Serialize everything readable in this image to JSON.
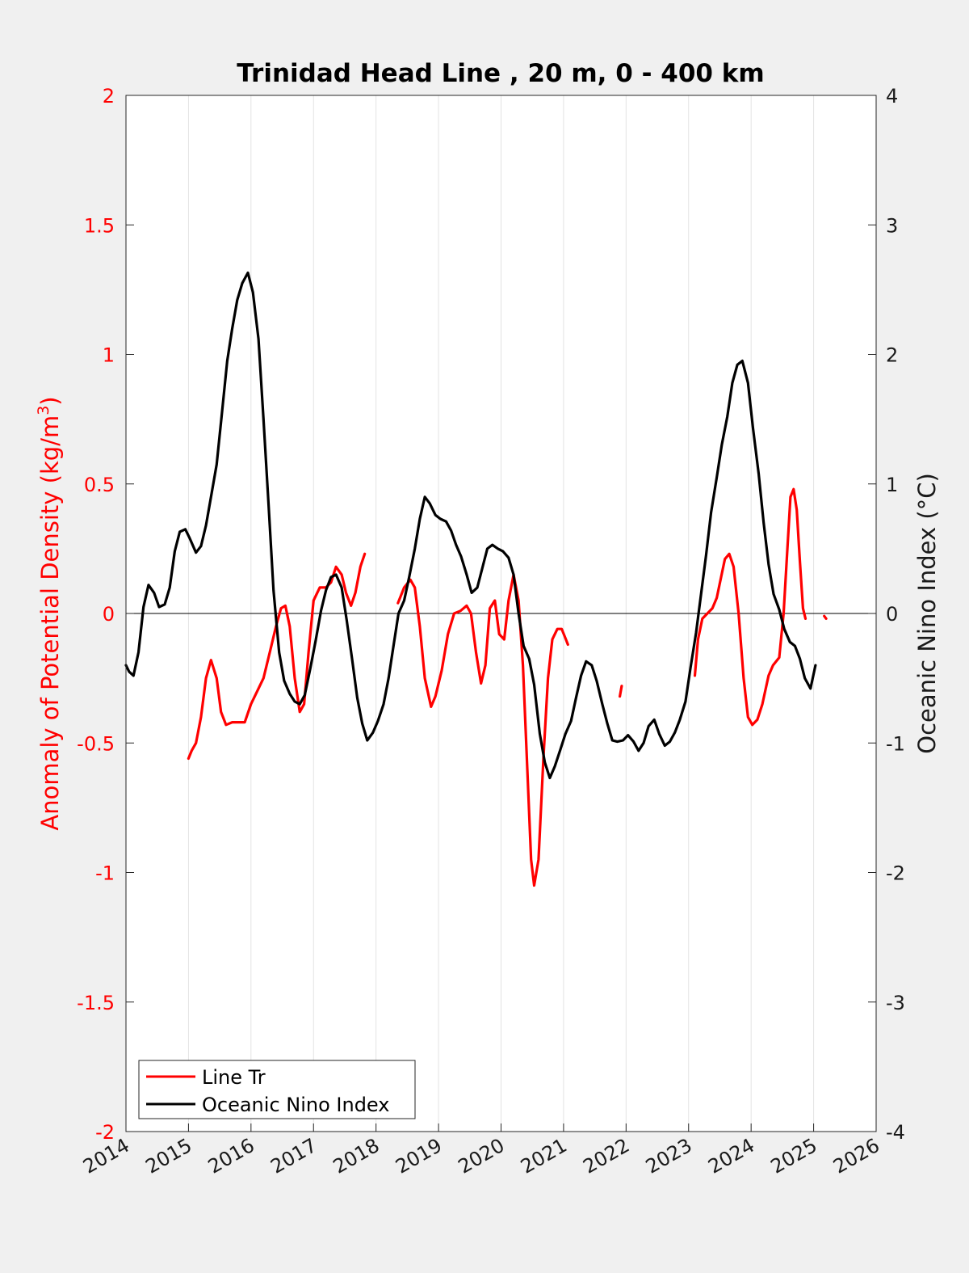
{
  "chart_data": {
    "type": "line",
    "title": "Trinidad Head Line , 20 m, 0 - 400 km",
    "xlabel": "",
    "ylabel_left": "Anomaly of Potential Density (kg/m³)",
    "ylabel_left_unit_prefix": "Anomaly of Potential Density (kg/m",
    "ylabel_left_unit_sup": "3",
    "ylabel_left_unit_suffix": ")",
    "ylabel_right": "Oceanic Nino Index (°C)",
    "xlim": [
      2014,
      2026
    ],
    "ylim_left": [
      -2,
      2
    ],
    "ylim_right": [
      -4,
      4
    ],
    "x_ticks": [
      "2014",
      "2015",
      "2016",
      "2017",
      "2018",
      "2019",
      "2020",
      "2021",
      "2022",
      "2023",
      "2024",
      "2025",
      "2026"
    ],
    "y_left_ticks": [
      "2",
      "1.5",
      "1",
      "0.5",
      "0",
      "-0.5",
      "-1",
      "-1.5",
      "-2"
    ],
    "y_right_ticks": [
      "4",
      "3",
      "2",
      "1",
      "0",
      "-1",
      "-2",
      "-3",
      "-4"
    ],
    "grid": "vertical",
    "legend_position": "bottom-left",
    "colors": {
      "line_tr": "#ff0000",
      "oni": "#000000",
      "zero_line": "#000000"
    },
    "series": [
      {
        "name": "Line Tr",
        "axis": "left",
        "segments": [
          [
            [
              2015.0,
              -0.56
            ],
            [
              2015.05,
              -0.53
            ],
            [
              2015.12,
              -0.5
            ],
            [
              2015.2,
              -0.4
            ],
            [
              2015.28,
              -0.25
            ],
            [
              2015.36,
              -0.18
            ],
            [
              2015.45,
              -0.25
            ],
            [
              2015.52,
              -0.38
            ],
            [
              2015.6,
              -0.43
            ],
            [
              2015.7,
              -0.42
            ],
            [
              2015.8,
              -0.42
            ],
            [
              2015.9,
              -0.42
            ],
            [
              2016.0,
              -0.35
            ],
            [
              2016.1,
              -0.3
            ],
            [
              2016.2,
              -0.25
            ],
            [
              2016.3,
              -0.15
            ],
            [
              2016.4,
              -0.05
            ],
            [
              2016.48,
              0.02
            ],
            [
              2016.55,
              0.03
            ],
            [
              2016.62,
              -0.05
            ],
            [
              2016.7,
              -0.25
            ],
            [
              2016.78,
              -0.38
            ],
            [
              2016.85,
              -0.35
            ],
            [
              2016.92,
              -0.15
            ],
            [
              2017.0,
              0.05
            ],
            [
              2017.1,
              0.1
            ],
            [
              2017.2,
              0.1
            ],
            [
              2017.28,
              0.12
            ],
            [
              2017.36,
              0.18
            ],
            [
              2017.45,
              0.15
            ],
            [
              2017.52,
              0.08
            ],
            [
              2017.6,
              0.03
            ],
            [
              2017.67,
              0.08
            ],
            [
              2017.75,
              0.18
            ],
            [
              2017.82,
              0.23
            ]
          ],
          [
            [
              2018.35,
              0.04
            ],
            [
              2018.45,
              0.1
            ],
            [
              2018.55,
              0.13
            ],
            [
              2018.62,
              0.1
            ],
            [
              2018.7,
              -0.05
            ],
            [
              2018.78,
              -0.25
            ],
            [
              2018.88,
              -0.36
            ],
            [
              2018.95,
              -0.32
            ],
            [
              2019.05,
              -0.22
            ],
            [
              2019.15,
              -0.08
            ],
            [
              2019.25,
              0.0
            ],
            [
              2019.35,
              0.01
            ],
            [
              2019.45,
              0.03
            ],
            [
              2019.52,
              0.0
            ],
            [
              2019.6,
              -0.15
            ],
            [
              2019.68,
              -0.27
            ],
            [
              2019.75,
              -0.2
            ],
            [
              2019.82,
              0.02
            ],
            [
              2019.9,
              0.05
            ],
            [
              2019.97,
              -0.08
            ],
            [
              2020.05,
              -0.1
            ],
            [
              2020.12,
              0.05
            ],
            [
              2020.2,
              0.15
            ],
            [
              2020.28,
              0.05
            ],
            [
              2020.35,
              -0.2
            ],
            [
              2020.42,
              -0.6
            ],
            [
              2020.48,
              -0.95
            ],
            [
              2020.53,
              -1.05
            ],
            [
              2020.6,
              -0.95
            ],
            [
              2020.68,
              -0.55
            ],
            [
              2020.75,
              -0.25
            ],
            [
              2020.82,
              -0.1
            ],
            [
              2020.9,
              -0.06
            ],
            [
              2020.97,
              -0.06
            ],
            [
              2021.02,
              -0.09
            ],
            [
              2021.07,
              -0.12
            ]
          ],
          [
            [
              2021.9,
              -0.32
            ],
            [
              2021.93,
              -0.28
            ]
          ],
          [
            [
              2023.1,
              -0.24
            ],
            [
              2023.15,
              -0.1
            ],
            [
              2023.22,
              -0.02
            ],
            [
              2023.3,
              0.0
            ],
            [
              2023.38,
              0.02
            ],
            [
              2023.45,
              0.06
            ],
            [
              2023.52,
              0.14
            ],
            [
              2023.58,
              0.21
            ],
            [
              2023.65,
              0.23
            ],
            [
              2023.72,
              0.18
            ],
            [
              2023.8,
              0.0
            ],
            [
              2023.88,
              -0.25
            ],
            [
              2023.95,
              -0.4
            ],
            [
              2024.02,
              -0.43
            ],
            [
              2024.1,
              -0.41
            ],
            [
              2024.18,
              -0.35
            ],
            [
              2024.28,
              -0.24
            ],
            [
              2024.35,
              -0.2
            ],
            [
              2024.45,
              -0.17
            ],
            [
              2024.52,
              0.0
            ],
            [
              2024.58,
              0.25
            ],
            [
              2024.63,
              0.45
            ],
            [
              2024.68,
              0.48
            ],
            [
              2024.73,
              0.4
            ],
            [
              2024.78,
              0.2
            ],
            [
              2024.83,
              0.02
            ],
            [
              2024.87,
              -0.02
            ]
          ],
          [
            [
              2025.17,
              -0.01
            ],
            [
              2025.2,
              -0.02
            ]
          ]
        ]
      },
      {
        "name": "Oceanic Nino Index",
        "axis": "right",
        "points": [
          [
            2014.0,
            -0.4
          ],
          [
            2014.05,
            -0.45
          ],
          [
            2014.12,
            -0.48
          ],
          [
            2014.2,
            -0.3
          ],
          [
            2014.28,
            0.05
          ],
          [
            2014.36,
            0.22
          ],
          [
            2014.45,
            0.16
          ],
          [
            2014.53,
            0.05
          ],
          [
            2014.62,
            0.07
          ],
          [
            2014.7,
            0.2
          ],
          [
            2014.78,
            0.48
          ],
          [
            2014.86,
            0.63
          ],
          [
            2014.95,
            0.65
          ],
          [
            2015.02,
            0.58
          ],
          [
            2015.12,
            0.47
          ],
          [
            2015.2,
            0.52
          ],
          [
            2015.28,
            0.68
          ],
          [
            2015.36,
            0.9
          ],
          [
            2015.45,
            1.15
          ],
          [
            2015.53,
            1.52
          ],
          [
            2015.62,
            1.95
          ],
          [
            2015.7,
            2.2
          ],
          [
            2015.78,
            2.42
          ],
          [
            2015.86,
            2.55
          ],
          [
            2015.95,
            2.63
          ],
          [
            2016.03,
            2.48
          ],
          [
            2016.12,
            2.12
          ],
          [
            2016.2,
            1.5
          ],
          [
            2016.28,
            0.85
          ],
          [
            2016.36,
            0.18
          ],
          [
            2016.45,
            -0.3
          ],
          [
            2016.53,
            -0.52
          ],
          [
            2016.62,
            -0.62
          ],
          [
            2016.7,
            -0.68
          ],
          [
            2016.78,
            -0.7
          ],
          [
            2016.86,
            -0.63
          ],
          [
            2016.95,
            -0.42
          ],
          [
            2017.03,
            -0.22
          ],
          [
            2017.12,
            0.02
          ],
          [
            2017.2,
            0.18
          ],
          [
            2017.28,
            0.28
          ],
          [
            2017.36,
            0.3
          ],
          [
            2017.45,
            0.2
          ],
          [
            2017.53,
            -0.05
          ],
          [
            2017.62,
            -0.36
          ],
          [
            2017.7,
            -0.65
          ],
          [
            2017.78,
            -0.85
          ],
          [
            2017.86,
            -0.98
          ],
          [
            2017.95,
            -0.92
          ],
          [
            2018.03,
            -0.83
          ],
          [
            2018.12,
            -0.7
          ],
          [
            2018.2,
            -0.5
          ],
          [
            2018.28,
            -0.25
          ],
          [
            2018.36,
            0.0
          ],
          [
            2018.45,
            0.1
          ],
          [
            2018.53,
            0.28
          ],
          [
            2018.62,
            0.5
          ],
          [
            2018.7,
            0.73
          ],
          [
            2018.78,
            0.9
          ],
          [
            2018.86,
            0.85
          ],
          [
            2018.95,
            0.76
          ],
          [
            2019.03,
            0.73
          ],
          [
            2019.12,
            0.71
          ],
          [
            2019.2,
            0.64
          ],
          [
            2019.28,
            0.53
          ],
          [
            2019.36,
            0.44
          ],
          [
            2019.45,
            0.3
          ],
          [
            2019.53,
            0.16
          ],
          [
            2019.62,
            0.2
          ],
          [
            2019.7,
            0.35
          ],
          [
            2019.78,
            0.5
          ],
          [
            2019.86,
            0.53
          ],
          [
            2019.95,
            0.5
          ],
          [
            2020.03,
            0.48
          ],
          [
            2020.12,
            0.43
          ],
          [
            2020.2,
            0.3
          ],
          [
            2020.28,
            0.0
          ],
          [
            2020.36,
            -0.25
          ],
          [
            2020.45,
            -0.35
          ],
          [
            2020.53,
            -0.55
          ],
          [
            2020.62,
            -0.93
          ],
          [
            2020.7,
            -1.15
          ],
          [
            2020.78,
            -1.27
          ],
          [
            2020.86,
            -1.18
          ],
          [
            2020.95,
            -1.05
          ],
          [
            2021.03,
            -0.93
          ],
          [
            2021.12,
            -0.83
          ],
          [
            2021.2,
            -0.65
          ],
          [
            2021.28,
            -0.48
          ],
          [
            2021.36,
            -0.37
          ],
          [
            2021.45,
            -0.4
          ],
          [
            2021.53,
            -0.52
          ],
          [
            2021.62,
            -0.7
          ],
          [
            2021.7,
            -0.85
          ],
          [
            2021.78,
            -0.98
          ],
          [
            2021.86,
            -0.99
          ],
          [
            2021.95,
            -0.98
          ],
          [
            2022.03,
            -0.94
          ],
          [
            2022.12,
            -0.99
          ],
          [
            2022.2,
            -1.06
          ],
          [
            2022.28,
            -1.0
          ],
          [
            2022.36,
            -0.87
          ],
          [
            2022.45,
            -0.82
          ],
          [
            2022.53,
            -0.93
          ],
          [
            2022.62,
            -1.02
          ],
          [
            2022.7,
            -0.99
          ],
          [
            2022.78,
            -0.92
          ],
          [
            2022.86,
            -0.82
          ],
          [
            2022.95,
            -0.68
          ],
          [
            2023.03,
            -0.42
          ],
          [
            2023.12,
            -0.15
          ],
          [
            2023.2,
            0.15
          ],
          [
            2023.28,
            0.45
          ],
          [
            2023.36,
            0.78
          ],
          [
            2023.45,
            1.05
          ],
          [
            2023.53,
            1.3
          ],
          [
            2023.62,
            1.52
          ],
          [
            2023.7,
            1.78
          ],
          [
            2023.78,
            1.92
          ],
          [
            2023.86,
            1.95
          ],
          [
            2023.95,
            1.78
          ],
          [
            2024.03,
            1.43
          ],
          [
            2024.12,
            1.08
          ],
          [
            2024.2,
            0.7
          ],
          [
            2024.28,
            0.38
          ],
          [
            2024.36,
            0.15
          ],
          [
            2024.45,
            0.03
          ],
          [
            2024.53,
            -0.12
          ],
          [
            2024.62,
            -0.22
          ],
          [
            2024.7,
            -0.25
          ],
          [
            2024.78,
            -0.35
          ],
          [
            2024.86,
            -0.5
          ],
          [
            2024.95,
            -0.58
          ],
          [
            2025.03,
            -0.4
          ]
        ]
      }
    ]
  }
}
